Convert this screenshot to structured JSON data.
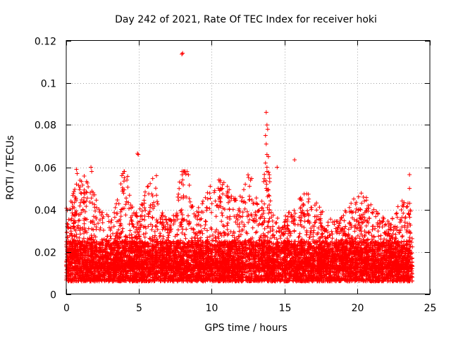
{
  "chart_data": {
    "type": "scatter",
    "title": "Day 242 of 2021, Rate Of TEC Index for receiver hoki",
    "xlabel": "GPS time / hours",
    "ylabel": "ROTI / TECUs",
    "xlim": [
      0,
      25
    ],
    "ylim": [
      0,
      0.12
    ],
    "xticks": [
      0,
      5,
      10,
      15,
      20,
      25
    ],
    "xtick_labels": [
      "0",
      "5",
      "10",
      "15",
      "20",
      "25"
    ],
    "yticks": [
      0,
      0.02,
      0.04,
      0.06,
      0.08,
      0.1,
      0.12
    ],
    "ytick_labels": [
      "0",
      "0.02",
      "0.04",
      "0.06",
      "0.08",
      "0.1",
      "0.12"
    ],
    "grid": true,
    "marker": "+",
    "marker_color": "#ff0000",
    "data_range_x": [
      0.0,
      23.8
    ],
    "baseline_band": [
      0.006,
      0.025
    ],
    "notable_points": [
      {
        "x": 7.95,
        "y": 0.1135
      },
      {
        "x": 8.0,
        "y": 0.114
      },
      {
        "x": 13.75,
        "y": 0.086
      },
      {
        "x": 13.8,
        "y": 0.08
      },
      {
        "x": 13.85,
        "y": 0.078
      },
      {
        "x": 13.7,
        "y": 0.075
      },
      {
        "x": 13.75,
        "y": 0.071
      },
      {
        "x": 13.8,
        "y": 0.066
      },
      {
        "x": 13.9,
        "y": 0.065
      },
      {
        "x": 13.7,
        "y": 0.062
      },
      {
        "x": 13.8,
        "y": 0.06
      },
      {
        "x": 13.75,
        "y": 0.05
      },
      {
        "x": 13.8,
        "y": 0.049
      },
      {
        "x": 14.5,
        "y": 0.06
      },
      {
        "x": 15.7,
        "y": 0.0635
      },
      {
        "x": 4.9,
        "y": 0.0665
      },
      {
        "x": 4.95,
        "y": 0.066
      },
      {
        "x": 6.2,
        "y": 0.056
      },
      {
        "x": 0.7,
        "y": 0.059
      },
      {
        "x": 0.75,
        "y": 0.057
      },
      {
        "x": 0.7,
        "y": 0.052
      },
      {
        "x": 1.7,
        "y": 0.06
      },
      {
        "x": 1.75,
        "y": 0.058
      },
      {
        "x": 3.9,
        "y": 0.057
      },
      {
        "x": 4.0,
        "y": 0.055
      },
      {
        "x": 8.0,
        "y": 0.054
      },
      {
        "x": 10.5,
        "y": 0.054
      },
      {
        "x": 9.9,
        "y": 0.051
      },
      {
        "x": 12.6,
        "y": 0.051
      },
      {
        "x": 23.6,
        "y": 0.0565
      },
      {
        "x": 23.6,
        "y": 0.05
      },
      {
        "x": 23.5,
        "y": 0.043
      },
      {
        "x": 20.1,
        "y": 0.046
      },
      {
        "x": 20.5,
        "y": 0.044
      }
    ]
  }
}
